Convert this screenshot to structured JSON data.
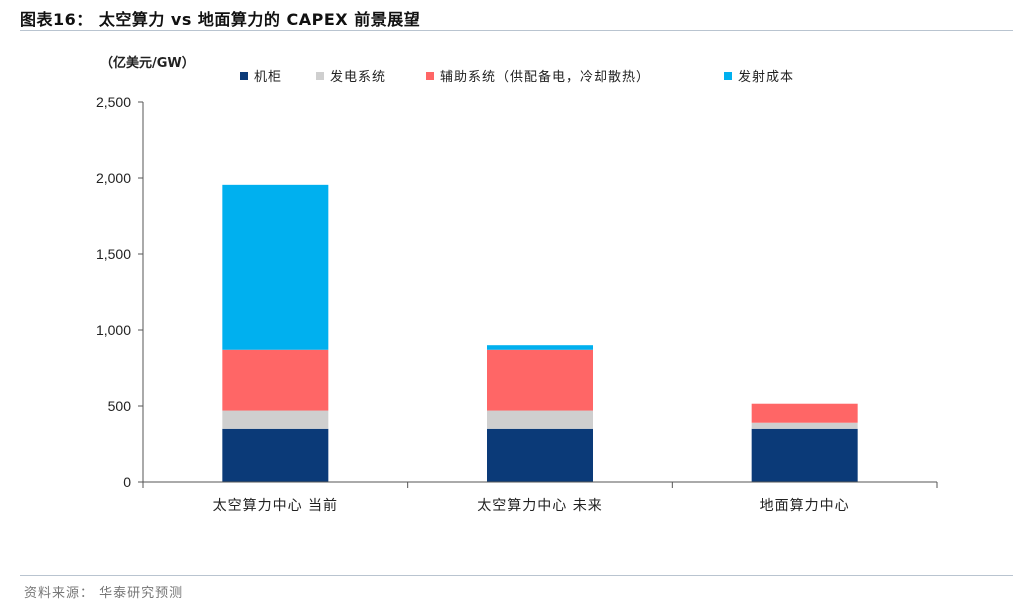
{
  "figure": {
    "title": "图表16： 太空算力 vs 地面算力的 CAPEX 前景展望",
    "source": "资料来源： 华泰研究预测"
  },
  "chart_data": {
    "type": "bar",
    "stacked": true,
    "unit_label": "（亿美元/GW）",
    "categories": [
      "太空算力中心 当前",
      "太空算力中心 未来",
      "地面算力中心"
    ],
    "series": [
      {
        "name": "机柜",
        "color": "#0b3a78",
        "values": [
          350,
          350,
          350
        ]
      },
      {
        "name": "发电系统",
        "color": "#cfcfcf",
        "values": [
          120,
          120,
          40
        ]
      },
      {
        "name": "辅助系统（供配备电，冷却散热）",
        "color": "#ff6666",
        "values": [
          400,
          400,
          125
        ]
      },
      {
        "name": "发射成本",
        "color": "#00b0ef",
        "values": [
          1085,
          30,
          0
        ]
      }
    ],
    "ylim": [
      0,
      2500
    ],
    "yticks": [
      0,
      500,
      1000,
      1500,
      2000,
      2500
    ],
    "ytick_labels": [
      "0",
      "500",
      "1,000",
      "1,500",
      "2,000",
      "2,500"
    ],
    "legend_position": "top",
    "grid": false
  }
}
